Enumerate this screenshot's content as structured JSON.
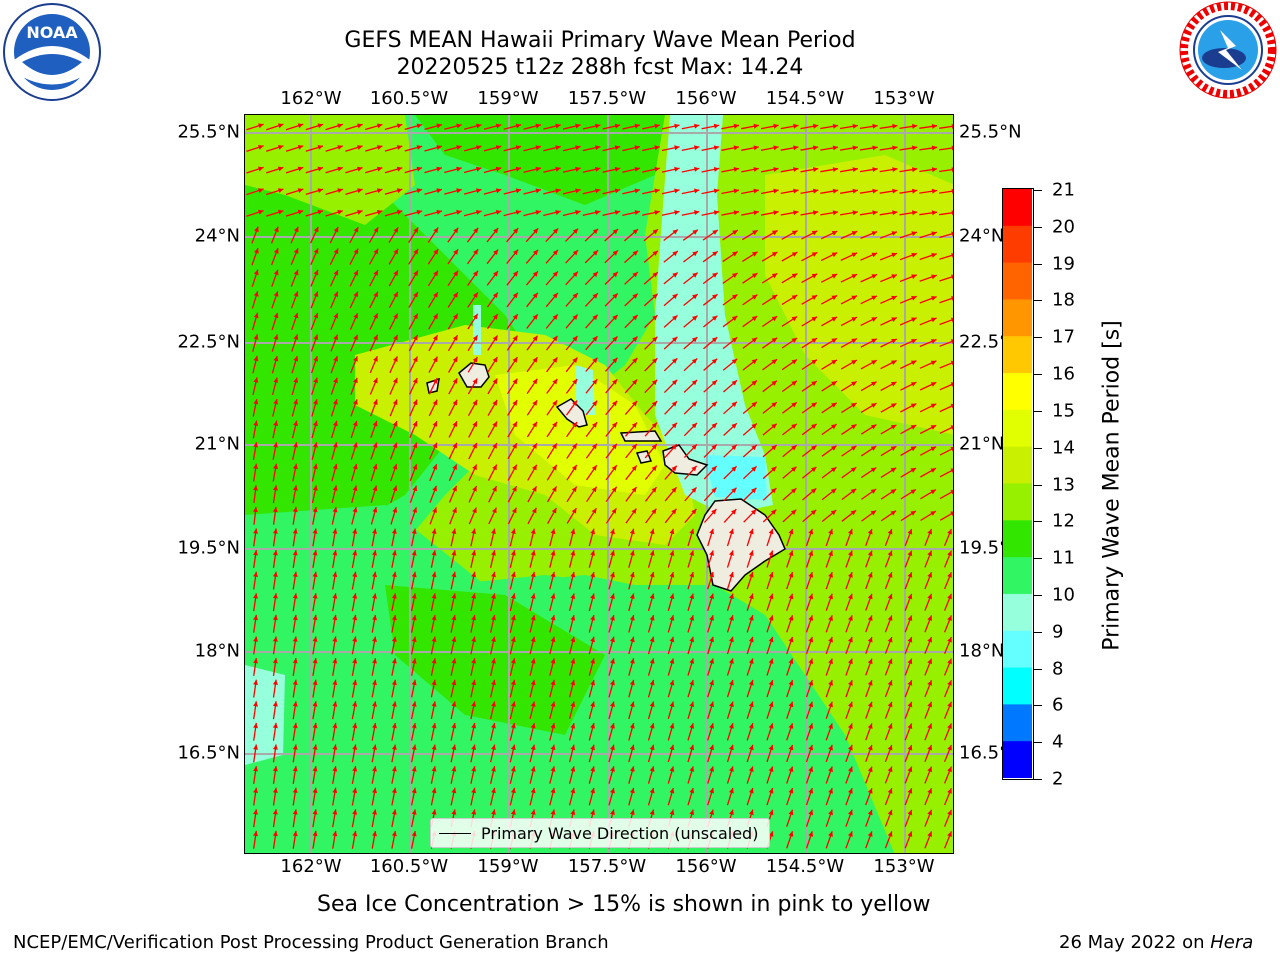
{
  "header": {
    "title_line1": "GEFS MEAN Hawaii Primary Wave Mean Period",
    "title_line2": "20220525 t12z 288h fcst   Max: 14.24"
  },
  "logos": {
    "left": {
      "name": "NOAA",
      "ring_text": "NATIONAL OCEANIC AND ATMOSPHERIC ADMINISTRATION · U.S. DEPARTMENT OF COMMERCE",
      "center_text": "NOAA"
    },
    "right": {
      "name": "National Weather Service",
      "ring_text": "NATIONAL WEATHER SERVICE"
    }
  },
  "map": {
    "lon_ticks": [
      "162°W",
      "160.5°W",
      "159°W",
      "157.5°W",
      "156°W",
      "154.5°W",
      "153°W"
    ],
    "lat_ticks": [
      "25.5°N",
      "24°N",
      "22.5°N",
      "21°N",
      "19.5°N",
      "18°N",
      "16.5°N"
    ],
    "legend_label": "Primary Wave Direction (unscaled)",
    "colors": {
      "arrow": "#ff0000",
      "land": "#efece0",
      "grid": "#a9a9a9"
    }
  },
  "colorbar": {
    "label": "Primary Wave Mean Period [s]",
    "ticks": [
      "21",
      "20",
      "19",
      "18",
      "17",
      "16",
      "15",
      "14",
      "13",
      "12",
      "11",
      "10",
      "9",
      "8",
      "6",
      "4",
      "2"
    ],
    "colors": [
      "#ff0000",
      "#ff3c00",
      "#ff6400",
      "#ff9600",
      "#ffc800",
      "#ffff00",
      "#e1ff00",
      "#c8f000",
      "#96f000",
      "#32e600",
      "#32f564",
      "#96ffdc",
      "#64ffff",
      "#00ffff",
      "#0078ff",
      "#0000ff"
    ]
  },
  "note": "Sea Ice Concentration > 15% is shown in pink to yellow",
  "footer": {
    "left": "NCEP/EMC/Verification Post Processing Product Generation Branch",
    "right_date": "26 May 2022 on",
    "right_host": "Hera"
  }
}
